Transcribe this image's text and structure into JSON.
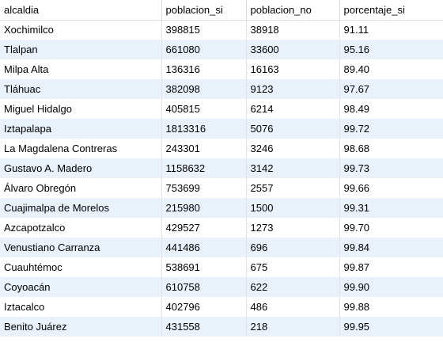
{
  "grid": {
    "columns": [
      "alcaldia",
      "poblacion_si",
      "poblacion_no",
      "porcentaje_si"
    ],
    "rows": [
      [
        "Xochimilco",
        "398815",
        "38918",
        "91.11"
      ],
      [
        "Tlalpan",
        "661080",
        "33600",
        "95.16"
      ],
      [
        "Milpa Alta",
        "136316",
        "16163",
        "89.40"
      ],
      [
        "Tláhuac",
        "382098",
        "9123",
        "97.67"
      ],
      [
        "Miguel Hidalgo",
        "405815",
        "6214",
        "98.49"
      ],
      [
        "Iztapalapa",
        "1813316",
        "5076",
        "99.72"
      ],
      [
        "La Magdalena Contreras",
        "243301",
        "3246",
        "98.68"
      ],
      [
        "Gustavo A. Madero",
        "1158632",
        "3142",
        "99.73"
      ],
      [
        "Álvaro Obregón",
        "753699",
        "2557",
        "99.66"
      ],
      [
        "Cuajimalpa de Morelos",
        "215980",
        "1500",
        "99.31"
      ],
      [
        "Azcapotzalco",
        "429527",
        "1273",
        "99.70"
      ],
      [
        "Venustiano Carranza",
        "441486",
        "696",
        "99.84"
      ],
      [
        "Cuauhtémoc",
        "538691",
        "675",
        "99.87"
      ],
      [
        "Coyoacán",
        "610758",
        "622",
        "99.90"
      ],
      [
        "Iztacalco",
        "402796",
        "486",
        "99.88"
      ],
      [
        "Benito Juárez",
        "431558",
        "218",
        "99.95"
      ]
    ],
    "colors": {
      "row_alt": "#e9f1fb",
      "grid_line": "#dcdcdc",
      "text": "#000000"
    }
  }
}
